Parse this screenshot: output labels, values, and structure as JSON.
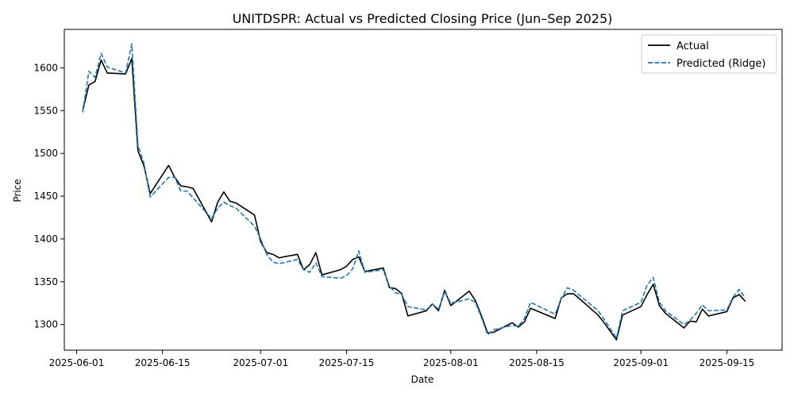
{
  "chart_data": {
    "type": "line",
    "title": "UNITDSPR: Actual vs Predicted Closing Price (Jun–Sep 2025)",
    "xlabel": "Date",
    "ylabel": "Price",
    "xlim": [
      "2025-05-30",
      "2025-09-24"
    ],
    "ylim": [
      1270,
      1645
    ],
    "x_ticks": [
      "2025-06-01",
      "2025-06-15",
      "2025-07-01",
      "2025-07-15",
      "2025-08-01",
      "2025-08-15",
      "2025-09-01",
      "2025-09-15"
    ],
    "y_ticks": [
      1300,
      1350,
      1400,
      1450,
      1500,
      1550,
      1600
    ],
    "grid": false,
    "legend_position": "top-right",
    "x": [
      "2025-06-02",
      "2025-06-03",
      "2025-06-04",
      "2025-06-05",
      "2025-06-06",
      "2025-06-09",
      "2025-06-10",
      "2025-06-11",
      "2025-06-12",
      "2025-06-13",
      "2025-06-16",
      "2025-06-17",
      "2025-06-18",
      "2025-06-19",
      "2025-06-20",
      "2025-06-23",
      "2025-06-24",
      "2025-06-25",
      "2025-06-26",
      "2025-06-27",
      "2025-06-30",
      "2025-07-01",
      "2025-07-02",
      "2025-07-03",
      "2025-07-04",
      "2025-07-07",
      "2025-07-08",
      "2025-07-09",
      "2025-07-10",
      "2025-07-11",
      "2025-07-14",
      "2025-07-15",
      "2025-07-16",
      "2025-07-17",
      "2025-07-18",
      "2025-07-21",
      "2025-07-22",
      "2025-07-23",
      "2025-07-24",
      "2025-07-25",
      "2025-07-28",
      "2025-07-29",
      "2025-07-30",
      "2025-07-31",
      "2025-08-01",
      "2025-08-04",
      "2025-08-05",
      "2025-08-06",
      "2025-08-07",
      "2025-08-08",
      "2025-08-11",
      "2025-08-12",
      "2025-08-13",
      "2025-08-14",
      "2025-08-18",
      "2025-08-19",
      "2025-08-20",
      "2025-08-21",
      "2025-08-22",
      "2025-08-25",
      "2025-08-26",
      "2025-08-28",
      "2025-08-29",
      "2025-09-01",
      "2025-09-02",
      "2025-09-03",
      "2025-09-04",
      "2025-09-05",
      "2025-09-08",
      "2025-09-09",
      "2025-09-10",
      "2025-09-11",
      "2025-09-12",
      "2025-09-15",
      "2025-09-16",
      "2025-09-17",
      "2025-09-18"
    ],
    "series": [
      {
        "name": "Actual",
        "color": "#000000",
        "style": "solid",
        "values": [
          1550,
          1580,
          1584,
          1609,
          1594,
          1593,
          1611,
          1503,
          1485,
          1453,
          1486,
          1472,
          1462,
          1461,
          1459,
          1420,
          1443,
          1455,
          1444,
          1442,
          1428,
          1397,
          1384,
          1382,
          1378,
          1382,
          1364,
          1370,
          1384,
          1358,
          1364,
          1368,
          1376,
          1379,
          1362,
          1366,
          1343,
          1342,
          1336,
          1310,
          1316,
          1324,
          1316,
          1340,
          1322,
          1339,
          1328,
          1310,
          1290,
          1291,
          1302,
          1297,
          1303,
          1319,
          1307,
          1331,
          1336,
          1336,
          1330,
          1311,
          1302,
          1282,
          1311,
          1321,
          1335,
          1347,
          1322,
          1313,
          1296,
          1304,
          1303,
          1318,
          1310,
          1315,
          1331,
          1335,
          1327
        ]
      },
      {
        "name": "Predicted (Ridge)",
        "color": "#1f77b4",
        "style": "dashed",
        "values": [
          1548,
          1596,
          1589,
          1617,
          1601,
          1594,
          1628,
          1510,
          1488,
          1449,
          1472,
          1472,
          1456,
          1456,
          1448,
          1424,
          1436,
          1443,
          1439,
          1436,
          1415,
          1400,
          1382,
          1373,
          1371,
          1376,
          1364,
          1361,
          1372,
          1356,
          1354,
          1357,
          1365,
          1386,
          1361,
          1364,
          1345,
          1337,
          1335,
          1321,
          1317,
          1324,
          1318,
          1338,
          1325,
          1330,
          1326,
          1308,
          1288,
          1294,
          1299,
          1298,
          1307,
          1326,
          1312,
          1330,
          1343,
          1340,
          1334,
          1316,
          1306,
          1284,
          1316,
          1326,
          1346,
          1355,
          1326,
          1316,
          1300,
          1305,
          1313,
          1323,
          1316,
          1317,
          1332,
          1341,
          1331
        ]
      }
    ]
  }
}
